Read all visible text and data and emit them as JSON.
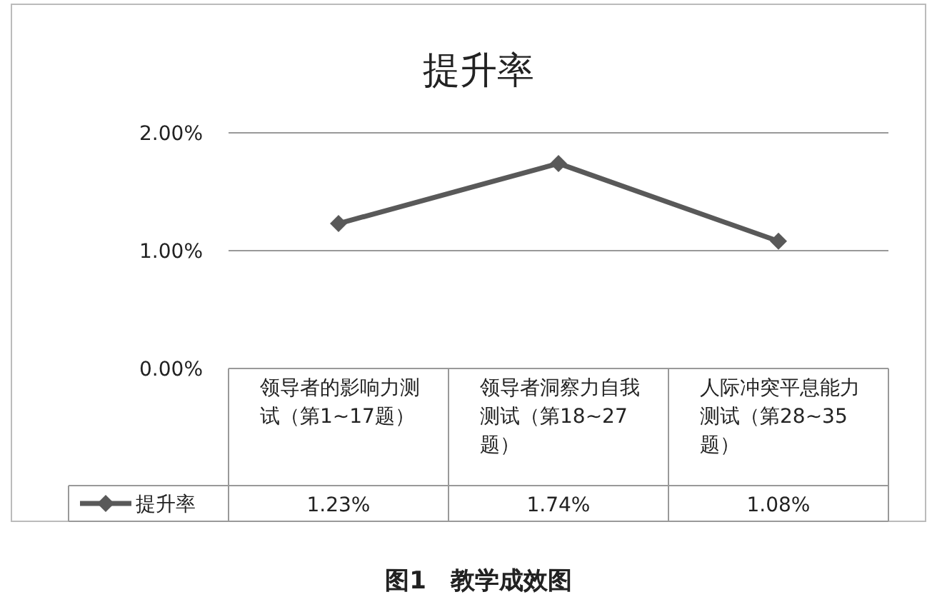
{
  "chart_data": {
    "type": "line",
    "title": "提升率",
    "categories": [
      "领导者的影响力测试（第1~17题）",
      "领导者洞察力自我测试（第18~27题）",
      "人际冲突平息能力测试（第28~35题）"
    ],
    "series": [
      {
        "name": "提升率",
        "color": "#595959",
        "values": [
          1.23,
          1.74,
          1.08
        ],
        "value_labels": [
          "1.23%",
          "1.74%",
          "1.08%"
        ]
      }
    ],
    "ylim": [
      0,
      2
    ],
    "yticks": [
      {
        "value": 0,
        "label": "0.00%"
      },
      {
        "value": 1,
        "label": "1.00%"
      },
      {
        "value": 2,
        "label": "2.00%"
      }
    ],
    "grid": "y",
    "marker": "diamond",
    "legend": "bottom left",
    "annotations": [
      "图1　教学成效图"
    ]
  }
}
